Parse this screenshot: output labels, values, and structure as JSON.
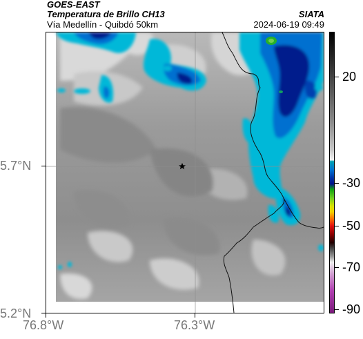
{
  "header": {
    "satellite": "GOES-EAST",
    "product": "Temperatura de Brillo CH13",
    "region": "Vía Medellín - Quibdó 50km",
    "org": "SIATA",
    "timestamp": "2024-06-19 09:49"
  },
  "map": {
    "lat_labels": [
      "5.7°N",
      "5.2°N"
    ],
    "lon_labels": [
      "76.8°W",
      "76.3°W"
    ],
    "marker": "star",
    "marker_icon": "star-icon"
  },
  "colorbar": {
    "tick_labels": [
      "20",
      "-30",
      "-50",
      "-70",
      "-90"
    ],
    "colors": {
      "warm": "#7a7a7a",
      "cloud_light": "#00b8d8",
      "cloud_mid": "#0070d0",
      "cloud_deep": "#001a8c",
      "convective": "#28b028"
    }
  }
}
